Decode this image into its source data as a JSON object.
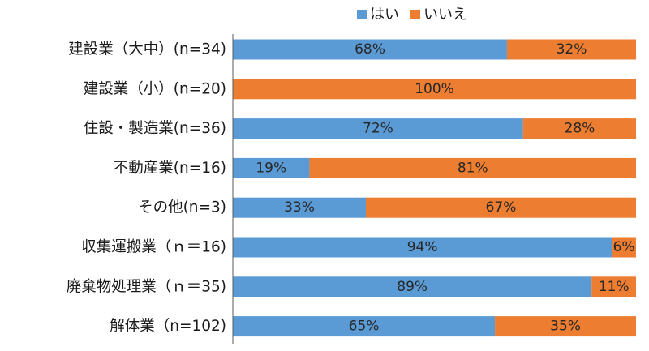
{
  "chart_data": {
    "type": "bar",
    "orientation": "horizontal",
    "stacked": true,
    "percent": true,
    "categories": [
      "建設業（大中）(n=34)",
      "建設業（小）(n=20)",
      "住設・製造業(n=36)",
      "不動産業(n=16)",
      "その他(n=3)",
      "収集運搬業（ｎ＝16)",
      "廃棄物処理業（ｎ＝35)",
      "解体業（n=102)"
    ],
    "series": [
      {
        "name": "はい",
        "color": "#5b9bd5",
        "values": [
          68,
          0,
          72,
          19,
          33,
          94,
          89,
          65
        ]
      },
      {
        "name": "いいえ",
        "color": "#ed7d31",
        "values": [
          32,
          100,
          28,
          81,
          67,
          6,
          11,
          35
        ]
      }
    ],
    "value_suffix": "%",
    "xlim": [
      0,
      100
    ],
    "grid": false,
    "legend_position": "top-right"
  }
}
